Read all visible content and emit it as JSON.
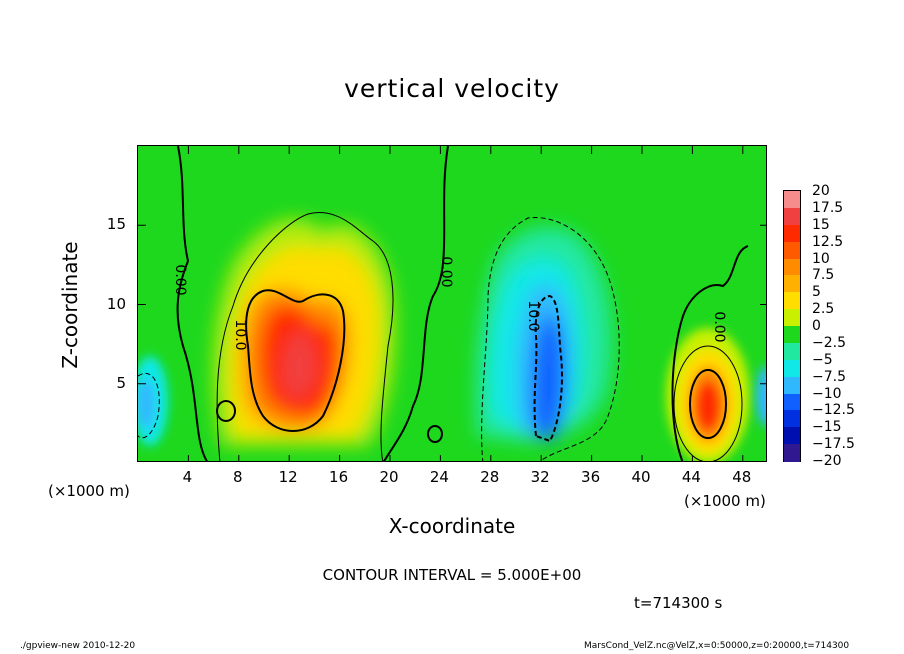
{
  "chart_data": {
    "type": "heatmap",
    "title": "vertical velocity",
    "xlabel": "X-coordinate",
    "ylabel": "Z-coordinate",
    "x_unit_left": "(×1000 m)",
    "x_unit_right": "(×1000 m)",
    "xlim": [
      0,
      50
    ],
    "ylim": [
      0,
      20
    ],
    "x_ticks": [
      "4",
      "8",
      "12",
      "16",
      "20",
      "24",
      "28",
      "32",
      "36",
      "40",
      "44",
      "48"
    ],
    "x_tick_values": [
      4,
      8,
      12,
      16,
      20,
      24,
      28,
      32,
      36,
      40,
      44,
      48
    ],
    "y_ticks": [
      "5",
      "10",
      "15"
    ],
    "y_tick_values": [
      5,
      10,
      15
    ],
    "contour_labels": [
      {
        "text": "0.00",
        "x": 3.4,
        "z": 11.5
      },
      {
        "text": "10.0",
        "x": 8.2,
        "z": 8.0
      },
      {
        "text": "0.00",
        "x": 24.5,
        "z": 12.0
      },
      {
        "text": "10.0",
        "x": 31.4,
        "z": 9.2
      },
      {
        "text": "0.00",
        "x": 46.2,
        "z": 8.5
      }
    ],
    "features": [
      {
        "kind": "updraft",
        "x": 12.5,
        "z": 7.5,
        "peak": 17.5
      },
      {
        "kind": "downdraft",
        "x": 32.5,
        "z": 7.0,
        "peak": -10
      },
      {
        "kind": "updraft",
        "x": 45.0,
        "z": 4.0,
        "peak": 15
      },
      {
        "kind": "downdraft",
        "x": 0.5,
        "z": 4.0,
        "peak": -7.5
      }
    ],
    "colorbar": {
      "labels": [
        "20",
        "17.5",
        "15",
        "12.5",
        "10",
        "7.5",
        "5",
        "2.5",
        "0",
        "−2.5",
        "−5",
        "−7.5",
        "−10",
        "−12.5",
        "−15",
        "−17.5",
        "−20"
      ],
      "colors": [
        "#f78c8c",
        "#f04040",
        "#ff2a00",
        "#ff5a00",
        "#ff8c00",
        "#ffb000",
        "#ffdd00",
        "#c8f000",
        "#1ed81e",
        "#20e8a0",
        "#10e8e8",
        "#30b8ff",
        "#1060ff",
        "#0030e0",
        "#0010b0",
        "#301890"
      ]
    },
    "contour_interval": "CONTOUR INTERVAL = 5.000E+00",
    "time": "t=714300 s"
  },
  "footer": {
    "left": "./gpview-new  2010-12-20",
    "right": "MarsCond_VelZ.nc@VelZ,x=0:50000,z=0:20000,t=714300"
  }
}
